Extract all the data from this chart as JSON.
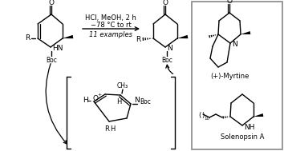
{
  "background_color": "#ffffff",
  "border_color": "#888888",
  "text_color": "#000000",
  "figsize": [
    3.54,
    1.89
  ],
  "dpi": 100,
  "reaction_arrow_text1": "HCl, MeOH, 2 h",
  "reaction_arrow_text2": "−78 °C to rt",
  "reaction_arrow_text3": "11 examples",
  "label_myrtine": "(+)-Myrtine",
  "label_solenopsin": "Solenopsin A",
  "boc_label": "Boc",
  "r_label": "R",
  "hn_label": "HN",
  "n_label": "N",
  "ch3_label": "CH₃",
  "o_label": "O",
  "h_label": "H",
  "nh_label": "NH"
}
